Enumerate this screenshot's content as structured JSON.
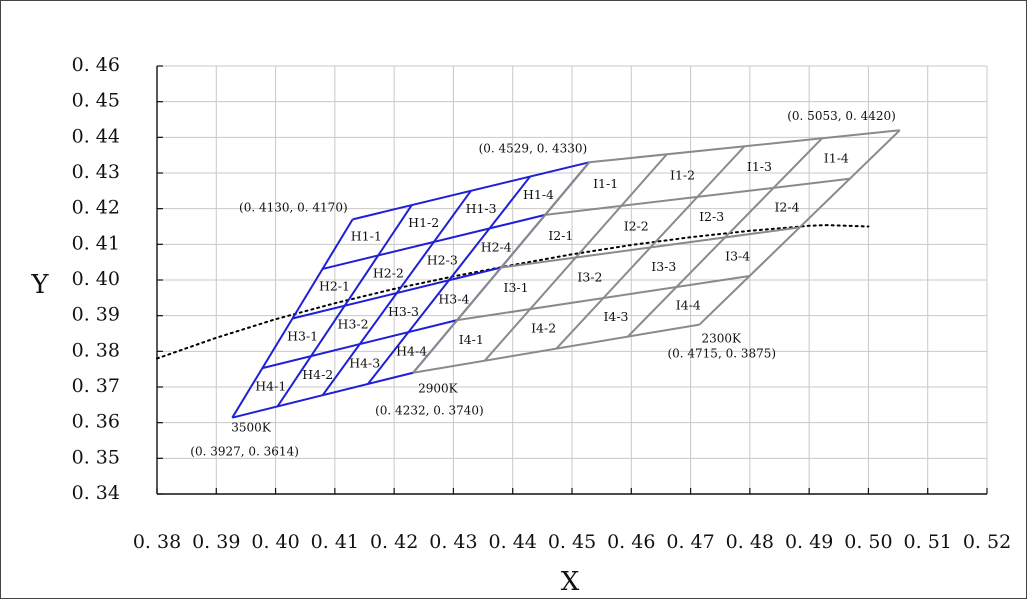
{
  "chart_data": {
    "type": "line",
    "title": "",
    "xlabel": "X",
    "ylabel": "Y",
    "xlim": [
      0.38,
      0.52
    ],
    "ylim": [
      0.34,
      0.46
    ],
    "grid": true,
    "x_ticks": [
      "0. 38",
      "0. 39",
      "0. 40",
      "0. 41",
      "0. 42",
      "0. 43",
      "0. 44",
      "0. 45",
      "0. 46",
      "0. 47",
      "0. 48",
      "0. 49",
      "0. 50",
      "0. 51",
      "0. 52"
    ],
    "y_ticks": [
      "0. 34",
      "0. 35",
      "0. 36",
      "0. 37",
      "0. 38",
      "0. 39",
      "0. 40",
      "0. 41",
      "0. 42",
      "0. 43",
      "0. 44",
      "0. 45",
      "0. 46"
    ],
    "groups": [
      {
        "id": "H",
        "color": "#1f1fd6",
        "corners": {
          "top_left": [
            0.413,
            0.417
          ],
          "top_right": [
            0.4529,
            0.433
          ],
          "bottom_right": [
            0.4232,
            0.374
          ],
          "bottom_left": [
            0.3927,
            0.3614
          ]
        },
        "rows": 4,
        "cols": 4,
        "cells": [
          [
            "H1-1",
            "H1-2",
            "H1-3",
            "H1-4"
          ],
          [
            "H2-1",
            "H2-2",
            "H2-3",
            "H2-4"
          ],
          [
            "H3-1",
            "H3-2",
            "H3-3",
            "H3-4"
          ],
          [
            "H4-1",
            "H4-2",
            "H4-3",
            "H4-4"
          ]
        ]
      },
      {
        "id": "I",
        "color": "#8a8a8a",
        "corners": {
          "top_left": [
            0.4529,
            0.433
          ],
          "top_right": [
            0.5053,
            0.442
          ],
          "bottom_right": [
            0.4715,
            0.3875
          ],
          "bottom_left": [
            0.4232,
            0.374
          ]
        },
        "rows": 4,
        "cols": 4,
        "cells": [
          [
            "I1-1",
            "I1-2",
            "I1-3",
            "I1-4"
          ],
          [
            "I2-1",
            "I2-2",
            "I2-3",
            "I2-4"
          ],
          [
            "I3-1",
            "I3-2",
            "I3-3",
            "I3-4"
          ],
          [
            "I4-1",
            "I4-2",
            "I4-3",
            "I4-4"
          ]
        ]
      }
    ],
    "annotations": [
      {
        "text": "(0. 4130, 0. 4170)",
        "at": [
          0.413,
          0.417
        ]
      },
      {
        "text": "(0. 4529, 0. 4330)",
        "at": [
          0.4529,
          0.433
        ]
      },
      {
        "text": "(0. 5053, 0. 4420)",
        "at": [
          0.5053,
          0.442
        ]
      },
      {
        "text": "2300K",
        "at": [
          0.4715,
          0.3875
        ]
      },
      {
        "text": "(0. 4715, 0. 3875)",
        "at": [
          0.4715,
          0.3875
        ]
      },
      {
        "text": "2900K",
        "at": [
          0.4232,
          0.374
        ]
      },
      {
        "text": "(0. 4232, 0. 3740)",
        "at": [
          0.4232,
          0.374
        ]
      },
      {
        "text": "3500K",
        "at": [
          0.3927,
          0.3614
        ]
      },
      {
        "text": "(0. 3927, 0. 3614)",
        "at": [
          0.3927,
          0.3614
        ]
      }
    ],
    "series": [
      {
        "style": "dotted",
        "color": "#000000",
        "x": [
          0.38,
          0.39,
          0.4,
          0.41,
          0.42,
          0.43,
          0.44,
          0.45,
          0.46,
          0.47,
          0.48,
          0.49,
          0.493,
          0.5
        ],
        "y": [
          0.378,
          0.3838,
          0.389,
          0.3935,
          0.3975,
          0.401,
          0.4042,
          0.4072,
          0.4098,
          0.412,
          0.4138,
          0.4152,
          0.4154,
          0.415
        ]
      }
    ]
  }
}
